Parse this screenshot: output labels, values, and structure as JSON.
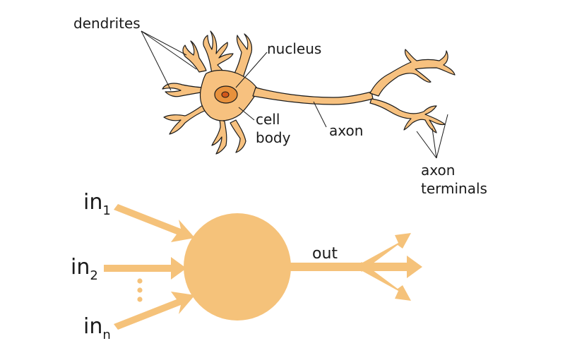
{
  "biological_neuron": {
    "labels": {
      "dendrites": "dendrites",
      "nucleus": "nucleus",
      "cell_body_line1": "cell",
      "cell_body_line2": "body",
      "axon": "axon",
      "axon_terminals_line1": "axon",
      "axon_terminals_line2": "terminals"
    }
  },
  "artificial_neuron": {
    "inputs": [
      {
        "base": "in",
        "subscript": "1"
      },
      {
        "base": "in",
        "subscript": "2"
      },
      {
        "base": "in",
        "subscript": "n"
      }
    ],
    "output_label": "out"
  },
  "colors": {
    "neuron_fill": "#f7c17f",
    "neuron_stroke": "#1a1a1a",
    "nucleus_fill": "#e8913c",
    "nucleolus_fill": "#d2571a",
    "arrow_fill": "#f5c27a",
    "text": "#1a1a1a"
  }
}
